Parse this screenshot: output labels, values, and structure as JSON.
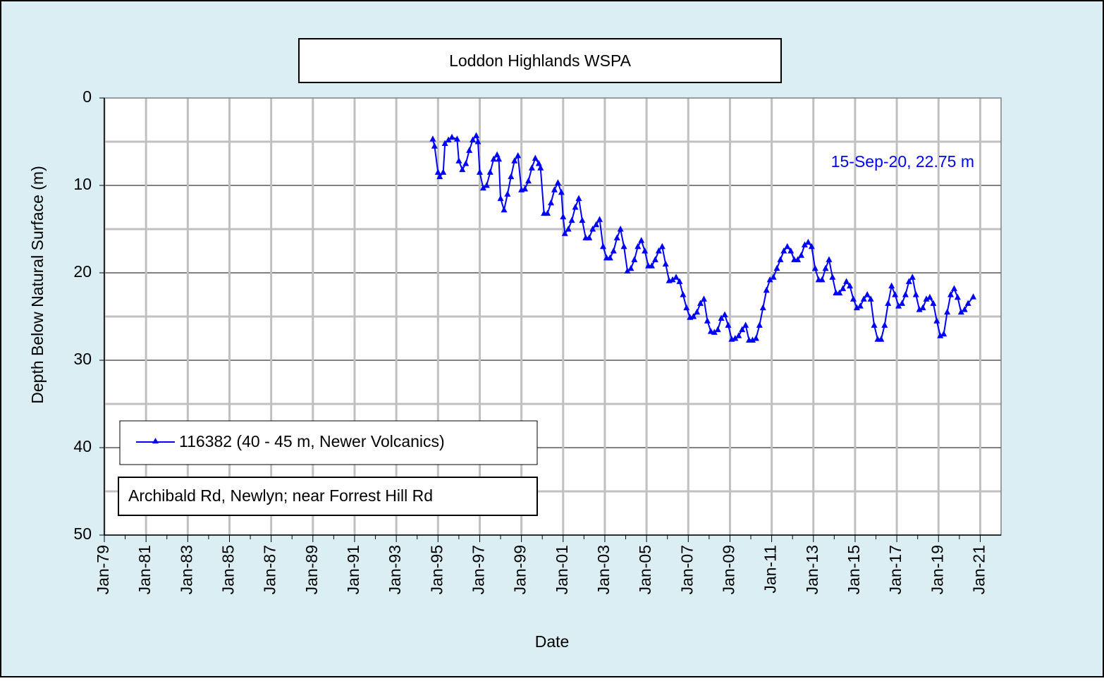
{
  "chart_data": {
    "type": "line",
    "title": "Loddon Highlands WSPA",
    "x_label": "Date",
    "y_label": "Depth Below Natural Surface (m)",
    "annotation": "15-Sep-20, 22.75 m",
    "location": "Archibald Rd, Newlyn; near Forrest Hill Rd",
    "y_inverted": true,
    "grid": true,
    "legend": "lower-left",
    "xlim": [
      "1979-01",
      "2022-01"
    ],
    "ylim": [
      0,
      50
    ],
    "yticks": [
      0,
      10,
      20,
      30,
      40,
      50
    ],
    "yminor_ticks": [
      5,
      15,
      25,
      35,
      45
    ],
    "xticks": [
      {
        "value": "1979-01",
        "label": "Jan-79"
      },
      {
        "value": "1981-01",
        "label": "Jan-81"
      },
      {
        "value": "1983-01",
        "label": "Jan-83"
      },
      {
        "value": "1985-01",
        "label": "Jan-85"
      },
      {
        "value": "1987-01",
        "label": "Jan-87"
      },
      {
        "value": "1989-01",
        "label": "Jan-89"
      },
      {
        "value": "1991-01",
        "label": "Jan-91"
      },
      {
        "value": "1993-01",
        "label": "Jan-93"
      },
      {
        "value": "1995-01",
        "label": "Jan-95"
      },
      {
        "value": "1997-01",
        "label": "Jan-97"
      },
      {
        "value": "1999-01",
        "label": "Jan-99"
      },
      {
        "value": "2001-01",
        "label": "Jan-01"
      },
      {
        "value": "2003-01",
        "label": "Jan-03"
      },
      {
        "value": "2005-01",
        "label": "Jan-05"
      },
      {
        "value": "2007-01",
        "label": "Jan-07"
      },
      {
        "value": "2009-01",
        "label": "Jan-09"
      },
      {
        "value": "2011-01",
        "label": "Jan-11"
      },
      {
        "value": "2013-01",
        "label": "Jan-13"
      },
      {
        "value": "2015-01",
        "label": "Jan-15"
      },
      {
        "value": "2017-01",
        "label": "Jan-17"
      },
      {
        "value": "2019-01",
        "label": "Jan-19"
      },
      {
        "value": "2021-01",
        "label": "Jan-21"
      }
    ],
    "xminor_ticks": [
      "1980-01",
      "1982-01",
      "1984-01",
      "1986-01",
      "1988-01",
      "1990-01",
      "1992-01",
      "1994-01",
      "1996-01",
      "1998-01",
      "2000-01",
      "2002-01",
      "2004-01",
      "2006-01",
      "2008-01",
      "2010-01",
      "2012-01",
      "2014-01",
      "2016-01",
      "2018-01",
      "2020-01"
    ],
    "x": [
      "1994-10",
      "1994-11",
      "1995-01",
      "1995-02",
      "1995-04",
      "1995-05",
      "1995-07",
      "1995-09",
      "1995-12",
      "1996-01",
      "1996-03",
      "1996-05",
      "1996-07",
      "1996-09",
      "1996-11",
      "1996-12",
      "1997-01",
      "1997-03",
      "1997-05",
      "1997-07",
      "1997-09",
      "1997-11",
      "1997-12",
      "1998-01",
      "1998-03",
      "1998-05",
      "1998-07",
      "1998-09",
      "1998-11",
      "1999-01",
      "1999-03",
      "1999-05",
      "1999-07",
      "1999-09",
      "1999-11",
      "1999-12",
      "2000-02",
      "2000-04",
      "2000-06",
      "2000-08",
      "2000-10",
      "2000-12",
      "2001-01",
      "2001-02",
      "2001-04",
      "2001-06",
      "2001-08",
      "2001-10",
      "2001-12",
      "2002-02",
      "2002-04",
      "2002-06",
      "2002-08",
      "2002-10",
      "2002-12",
      "2003-02",
      "2003-04",
      "2003-06",
      "2003-08",
      "2003-10",
      "2003-12",
      "2004-02",
      "2004-04",
      "2004-06",
      "2004-08",
      "2004-10",
      "2004-12",
      "2005-02",
      "2005-04",
      "2005-06",
      "2005-08",
      "2005-10",
      "2005-12",
      "2006-02",
      "2006-04",
      "2006-06",
      "2006-08",
      "2006-10",
      "2006-12",
      "2007-02",
      "2007-04",
      "2007-06",
      "2007-08",
      "2007-10",
      "2007-12",
      "2008-02",
      "2008-04",
      "2008-06",
      "2008-08",
      "2008-10",
      "2008-12",
      "2009-02",
      "2009-04",
      "2009-06",
      "2009-08",
      "2009-10",
      "2009-12",
      "2010-02",
      "2010-04",
      "2010-06",
      "2010-08",
      "2010-10",
      "2010-12",
      "2011-02",
      "2011-04",
      "2011-06",
      "2011-08",
      "2011-10",
      "2011-12",
      "2012-02",
      "2012-04",
      "2012-06",
      "2012-08",
      "2012-10",
      "2012-12",
      "2013-02",
      "2013-04",
      "2013-06",
      "2013-08",
      "2013-10",
      "2013-12",
      "2014-02",
      "2014-04",
      "2014-06",
      "2014-08",
      "2014-10",
      "2014-12",
      "2015-02",
      "2015-04",
      "2015-06",
      "2015-08",
      "2015-10",
      "2015-12",
      "2016-02",
      "2016-04",
      "2016-06",
      "2016-08",
      "2016-10",
      "2016-12",
      "2017-02",
      "2017-04",
      "2017-06",
      "2017-08",
      "2017-10",
      "2017-12",
      "2018-02",
      "2018-04",
      "2018-06",
      "2018-08",
      "2018-10",
      "2018-12",
      "2019-02",
      "2019-04",
      "2019-06",
      "2019-08",
      "2019-10",
      "2019-12",
      "2020-02",
      "2020-04",
      "2020-06",
      "2020-09"
    ],
    "series": [
      {
        "name": "116382 (40 - 45 m, Newer Volcanics)",
        "color": "#0000ff",
        "values": [
          4.7,
          5.5,
          8.5,
          9.0,
          8.5,
          5.2,
          4.8,
          4.5,
          4.7,
          7.2,
          8.2,
          7.5,
          6.0,
          4.8,
          4.3,
          5.0,
          8.5,
          10.3,
          10.0,
          8.5,
          7.0,
          6.5,
          7.0,
          11.5,
          12.8,
          11.0,
          9.0,
          7.2,
          6.6,
          10.5,
          10.4,
          9.5,
          8.0,
          6.9,
          7.5,
          8.0,
          13.2,
          13.2,
          12.0,
          10.5,
          9.7,
          10.8,
          13.6,
          15.5,
          15.0,
          14.0,
          12.5,
          11.5,
          14.0,
          16.0,
          16.0,
          15.0,
          14.5,
          13.9,
          17.0,
          18.3,
          18.3,
          17.5,
          16.0,
          15.0,
          17.0,
          19.8,
          19.5,
          18.5,
          17.0,
          16.3,
          17.5,
          19.2,
          19.2,
          18.5,
          17.5,
          17.0,
          19.0,
          20.9,
          20.8,
          20.5,
          21.0,
          22.5,
          24.0,
          25.1,
          25.0,
          24.5,
          23.5,
          23.0,
          25.5,
          26.7,
          26.8,
          26.5,
          25.2,
          24.8,
          26.0,
          27.6,
          27.5,
          27.2,
          26.5,
          26.0,
          27.7,
          27.7,
          27.5,
          26.0,
          24.0,
          22.0,
          20.8,
          20.5,
          19.5,
          18.5,
          17.5,
          17.0,
          17.5,
          18.5,
          18.5,
          18.0,
          16.8,
          16.5,
          17.0,
          19.5,
          20.8,
          20.8,
          19.5,
          18.5,
          20.5,
          22.3,
          22.3,
          21.8,
          21.0,
          21.5,
          23.0,
          24.0,
          23.8,
          23.0,
          22.5,
          23.0,
          26.0,
          27.6,
          27.6,
          26.0,
          23.5,
          21.5,
          22.5,
          23.8,
          23.5,
          22.5,
          21.0,
          20.5,
          22.5,
          24.2,
          24.0,
          23.0,
          22.8,
          23.5,
          25.5,
          27.2,
          27.0,
          24.5,
          22.5,
          21.8,
          22.8,
          24.5,
          24.2,
          23.5,
          22.75
        ]
      }
    ]
  }
}
